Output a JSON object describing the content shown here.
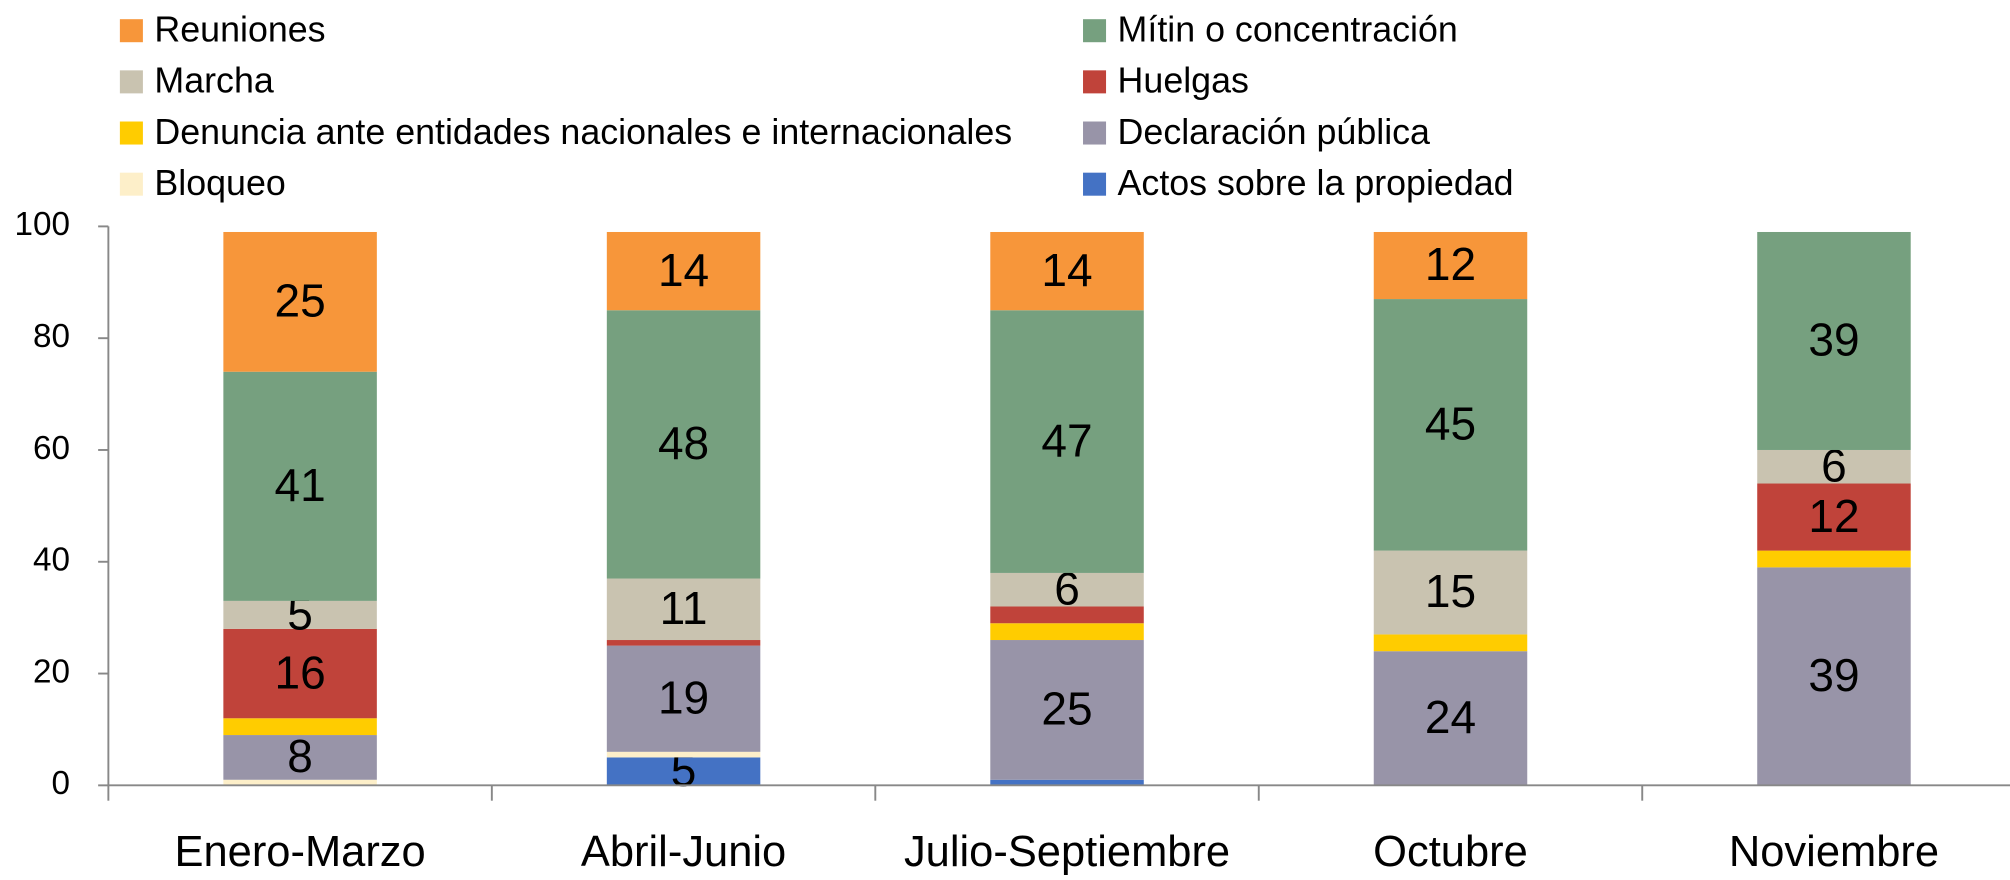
{
  "chart_data": {
    "type": "stacked_bar",
    "categories": [
      "Enero-Marzo",
      "Abril-Junio",
      "Julio-Septiembre",
      "Octubre",
      "Noviembre"
    ],
    "series": [
      {
        "name": "Reuniones",
        "color": "#f7963a",
        "values": [
          25,
          14,
          14,
          12,
          0
        ]
      },
      {
        "name": "Mítin o concentración",
        "color": "#76a07f",
        "values": [
          41,
          48,
          47,
          45,
          39
        ]
      },
      {
        "name": "Marcha",
        "color": "#c9c3b0",
        "values": [
          5,
          11,
          6,
          15,
          6
        ]
      },
      {
        "name": "Huelgas",
        "color": "#c0433a",
        "values": [
          16,
          1,
          3,
          0,
          12
        ]
      },
      {
        "name": "Denuncia ante entidades nacionales e internacionales",
        "color": "#ffcc00",
        "values": [
          3,
          0,
          3,
          3,
          3
        ]
      },
      {
        "name": "Declaración pública",
        "color": "#9894a8",
        "values": [
          8,
          19,
          25,
          24,
          39
        ]
      },
      {
        "name": "Bloqueo",
        "color": "#fdefc9",
        "values": [
          1,
          1,
          0,
          0,
          0
        ]
      },
      {
        "name": "Actos sobre la propiedad",
        "color": "#4472c4",
        "values": [
          0,
          5,
          1,
          0,
          0
        ]
      }
    ],
    "ylim": [
      0,
      100
    ],
    "yticks": [
      0,
      20,
      40,
      60,
      80,
      100
    ],
    "data_labels": true,
    "legend": "top"
  }
}
